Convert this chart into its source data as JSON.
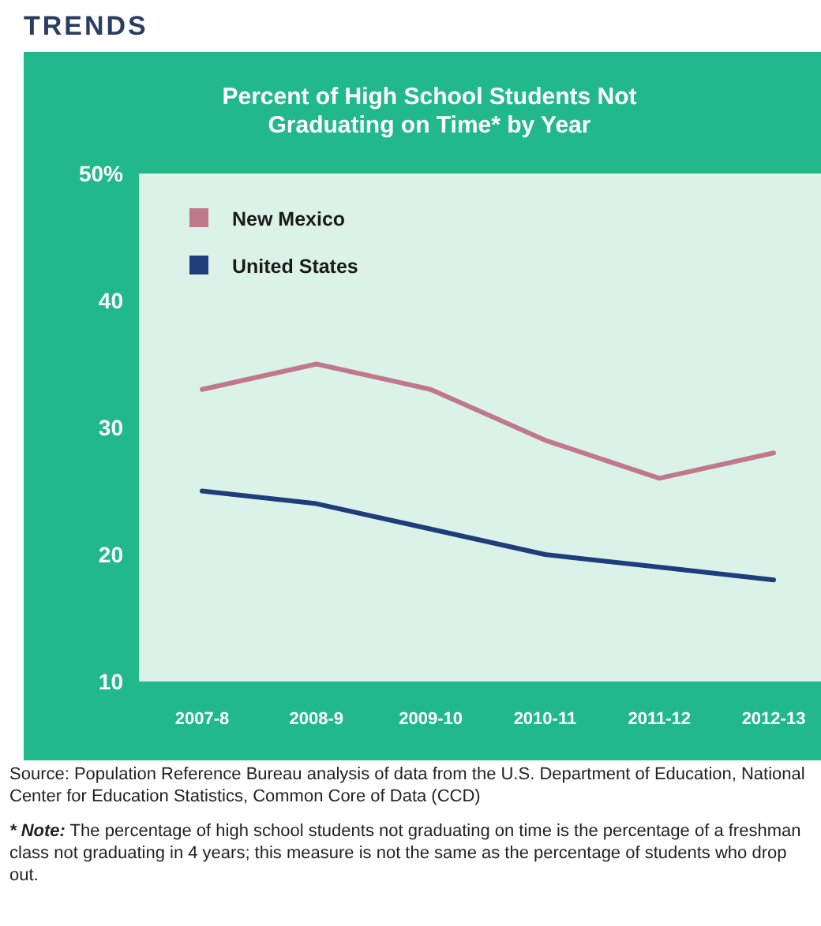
{
  "chart_data": {
    "type": "line",
    "title": "Percent of High School Students Not Graduating on Time* by Year",
    "categories": [
      "2007-8",
      "2008-9",
      "2009-10",
      "2010-11",
      "2011-12",
      "2012-13"
    ],
    "series": [
      {
        "name": "New Mexico",
        "color": "#c0788a",
        "values": [
          33,
          35,
          33,
          29,
          26,
          28
        ]
      },
      {
        "name": "United States",
        "color": "#1f3d7a",
        "values": [
          25,
          24,
          22,
          20,
          19,
          18
        ]
      }
    ],
    "ylim": [
      10,
      50
    ],
    "yticks": [
      {
        "value": 50,
        "label": "50%"
      },
      40,
      30,
      20,
      10
    ],
    "legend": "top left",
    "annotations": [
      "TRENDS",
      "Source: Population Reference Bureau analysis of data from the U.S. Department of Education, National Center for Education Statistics, Common Core of Data (CCD)",
      "* Note: The percentage of high school students not graduating on time is the percentage of a freshman class not graduating in 4 years; this measure is not the same as the percentage of students who drop out."
    ]
  }
}
